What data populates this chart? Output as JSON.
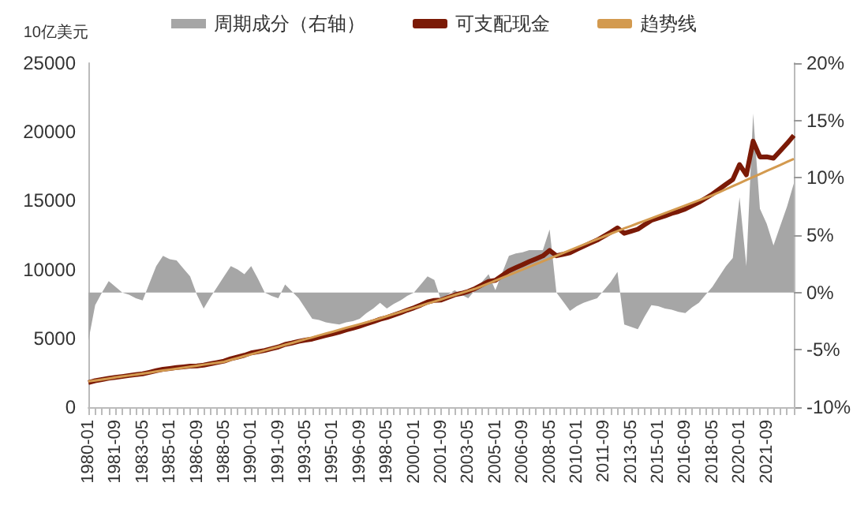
{
  "chart_data": {
    "type": "line",
    "ylabel": "10亿美元",
    "categories": [
      "1980-01",
      null,
      null,
      null,
      "1981-09",
      null,
      null,
      null,
      "1983-05",
      null,
      null,
      null,
      "1985-01",
      null,
      null,
      null,
      "1986-09",
      null,
      null,
      null,
      "1988-05",
      null,
      null,
      null,
      "1990-01",
      null,
      null,
      null,
      "1991-09",
      null,
      null,
      null,
      "1993-05",
      null,
      null,
      null,
      "1995-01",
      null,
      null,
      null,
      "1996-09",
      null,
      null,
      null,
      "1998-05",
      null,
      null,
      null,
      "2000-01",
      null,
      null,
      null,
      "2001-09",
      null,
      null,
      null,
      "2003-05",
      null,
      null,
      null,
      "2005-01",
      null,
      null,
      null,
      "2006-09",
      null,
      null,
      null,
      "2008-05",
      null,
      null,
      null,
      "2010-01",
      null,
      null,
      null,
      "2011-09",
      null,
      null,
      null,
      "2013-05",
      null,
      null,
      null,
      "2015-01",
      null,
      null,
      null,
      "2016-09",
      null,
      null,
      null,
      "2018-05",
      null,
      null,
      null,
      "2020-01",
      null,
      null,
      null,
      "2021-09",
      null,
      null,
      null,
      null
    ],
    "series": [
      {
        "name": "周期成分（右轴）",
        "type": "area",
        "axis": "y2",
        "color": "#a6a6a6",
        "values": [
          -4.2,
          -1.1,
          0,
          1.0,
          0.5,
          0,
          -0.2,
          -0.5,
          -0.7,
          0.8,
          2.3,
          3.2,
          2.9,
          2.8,
          2.1,
          1.4,
          -0.2,
          -1.4,
          -0.4,
          0.5,
          1.4,
          2.3,
          2.0,
          1.6,
          2.3,
          1.2,
          0,
          -0.3,
          -0.5,
          0.7,
          0.1,
          -0.5,
          -1.4,
          -2.3,
          -2.4,
          -2.6,
          -2.7,
          -2.8,
          -2.6,
          -2.5,
          -2.3,
          -1.8,
          -1.4,
          -0.9,
          -1.4,
          -1.0,
          -0.7,
          -0.3,
          0,
          0.7,
          1.4,
          1.1,
          -0.7,
          -0.2,
          0.2,
          -0.2,
          -0.5,
          0.2,
          0.9,
          1.6,
          0.2,
          1.7,
          3.2,
          3.4,
          3.5,
          3.7,
          3.7,
          3.7,
          5.5,
          0,
          -0.8,
          -1.6,
          -1.2,
          -0.9,
          -0.7,
          -0.5,
          0.2,
          0.9,
          1.8,
          -2.8,
          -3.0,
          -3.2,
          -2.1,
          -1.1,
          -1.2,
          -1.4,
          -1.5,
          -1.7,
          -1.8,
          -1.3,
          -0.9,
          -0.2,
          0.5,
          1.4,
          2.3,
          3.0,
          8.3,
          2.3,
          15.6,
          7.3,
          6.0,
          4.1,
          5.8,
          7.5,
          9.5
        ]
      },
      {
        "name": "可支配现金",
        "color": "#7b1a06",
        "values": [
          1790,
          1920,
          2010,
          2100,
          2170,
          2230,
          2300,
          2360,
          2420,
          2530,
          2650,
          2750,
          2810,
          2880,
          2930,
          2980,
          3000,
          3050,
          3150,
          3250,
          3350,
          3520,
          3640,
          3770,
          3940,
          4030,
          4120,
          4250,
          4370,
          4560,
          4660,
          4780,
          4870,
          4950,
          5080,
          5210,
          5330,
          5460,
          5610,
          5740,
          5890,
          6050,
          6210,
          6390,
          6520,
          6690,
          6860,
          7050,
          7220,
          7420,
          7640,
          7760,
          7780,
          7970,
          8160,
          8270,
          8410,
          8620,
          8880,
          9140,
          9220,
          9560,
          9910,
          10130,
          10350,
          10580,
          10780,
          10990,
          11390,
          11000,
          11110,
          11220,
          11460,
          11690,
          11920,
          12140,
          12420,
          12710,
          13030,
          12630,
          12780,
          12930,
          13260,
          13580,
          13740,
          13900,
          14080,
          14220,
          14400,
          14650,
          14890,
          15180,
          15480,
          15840,
          16200,
          16540,
          17630,
          16880,
          19330,
          18180,
          18190,
          18090,
          18620,
          19160,
          19750
        ]
      },
      {
        "name": "趋势线",
        "color": "#d39a4f",
        "values": [
          1870,
          1940,
          2010,
          2080,
          2160,
          2230,
          2300,
          2370,
          2440,
          2510,
          2590,
          2660,
          2730,
          2800,
          2870,
          2940,
          3010,
          3090,
          3160,
          3230,
          3300,
          3440,
          3570,
          3710,
          3850,
          3980,
          4120,
          4260,
          4390,
          4530,
          4660,
          4800,
          4940,
          5070,
          5210,
          5350,
          5480,
          5620,
          5760,
          5890,
          6030,
          6160,
          6300,
          6450,
          6610,
          6760,
          6910,
          7070,
          7220,
          7370,
          7530,
          7680,
          7830,
          7990,
          8140,
          8290,
          8450,
          8600,
          8800,
          9000,
          9200,
          9400,
          9600,
          9800,
          10000,
          10200,
          10400,
          10600,
          10800,
          11000,
          11200,
          11400,
          11600,
          11800,
          12000,
          12200,
          12400,
          12600,
          12800,
          12990,
          13170,
          13360,
          13540,
          13730,
          13910,
          14100,
          14290,
          14470,
          14660,
          14840,
          15030,
          15210,
          15400,
          15620,
          15840,
          16060,
          16280,
          16500,
          16720,
          16940,
          17160,
          17380,
          17600,
          17820,
          18040
        ]
      }
    ],
    "ylim": [
      0,
      25000
    ],
    "yticks": [
      0,
      5000,
      10000,
      15000,
      20000,
      25000
    ],
    "y2lim": [
      -10,
      20
    ],
    "y2ticks": [
      {
        "value": -10,
        "label": "-10%"
      },
      {
        "value": -5,
        "label": "-5%"
      },
      {
        "value": 0,
        "label": "0%"
      },
      {
        "value": 5,
        "label": "5%"
      },
      {
        "value": 10,
        "label": "10%"
      },
      {
        "value": 15,
        "label": "15%"
      },
      {
        "value": 20,
        "label": "20%"
      }
    ],
    "grid": false,
    "legend": "top",
    "marker": "none",
    "line_style": "solid"
  }
}
